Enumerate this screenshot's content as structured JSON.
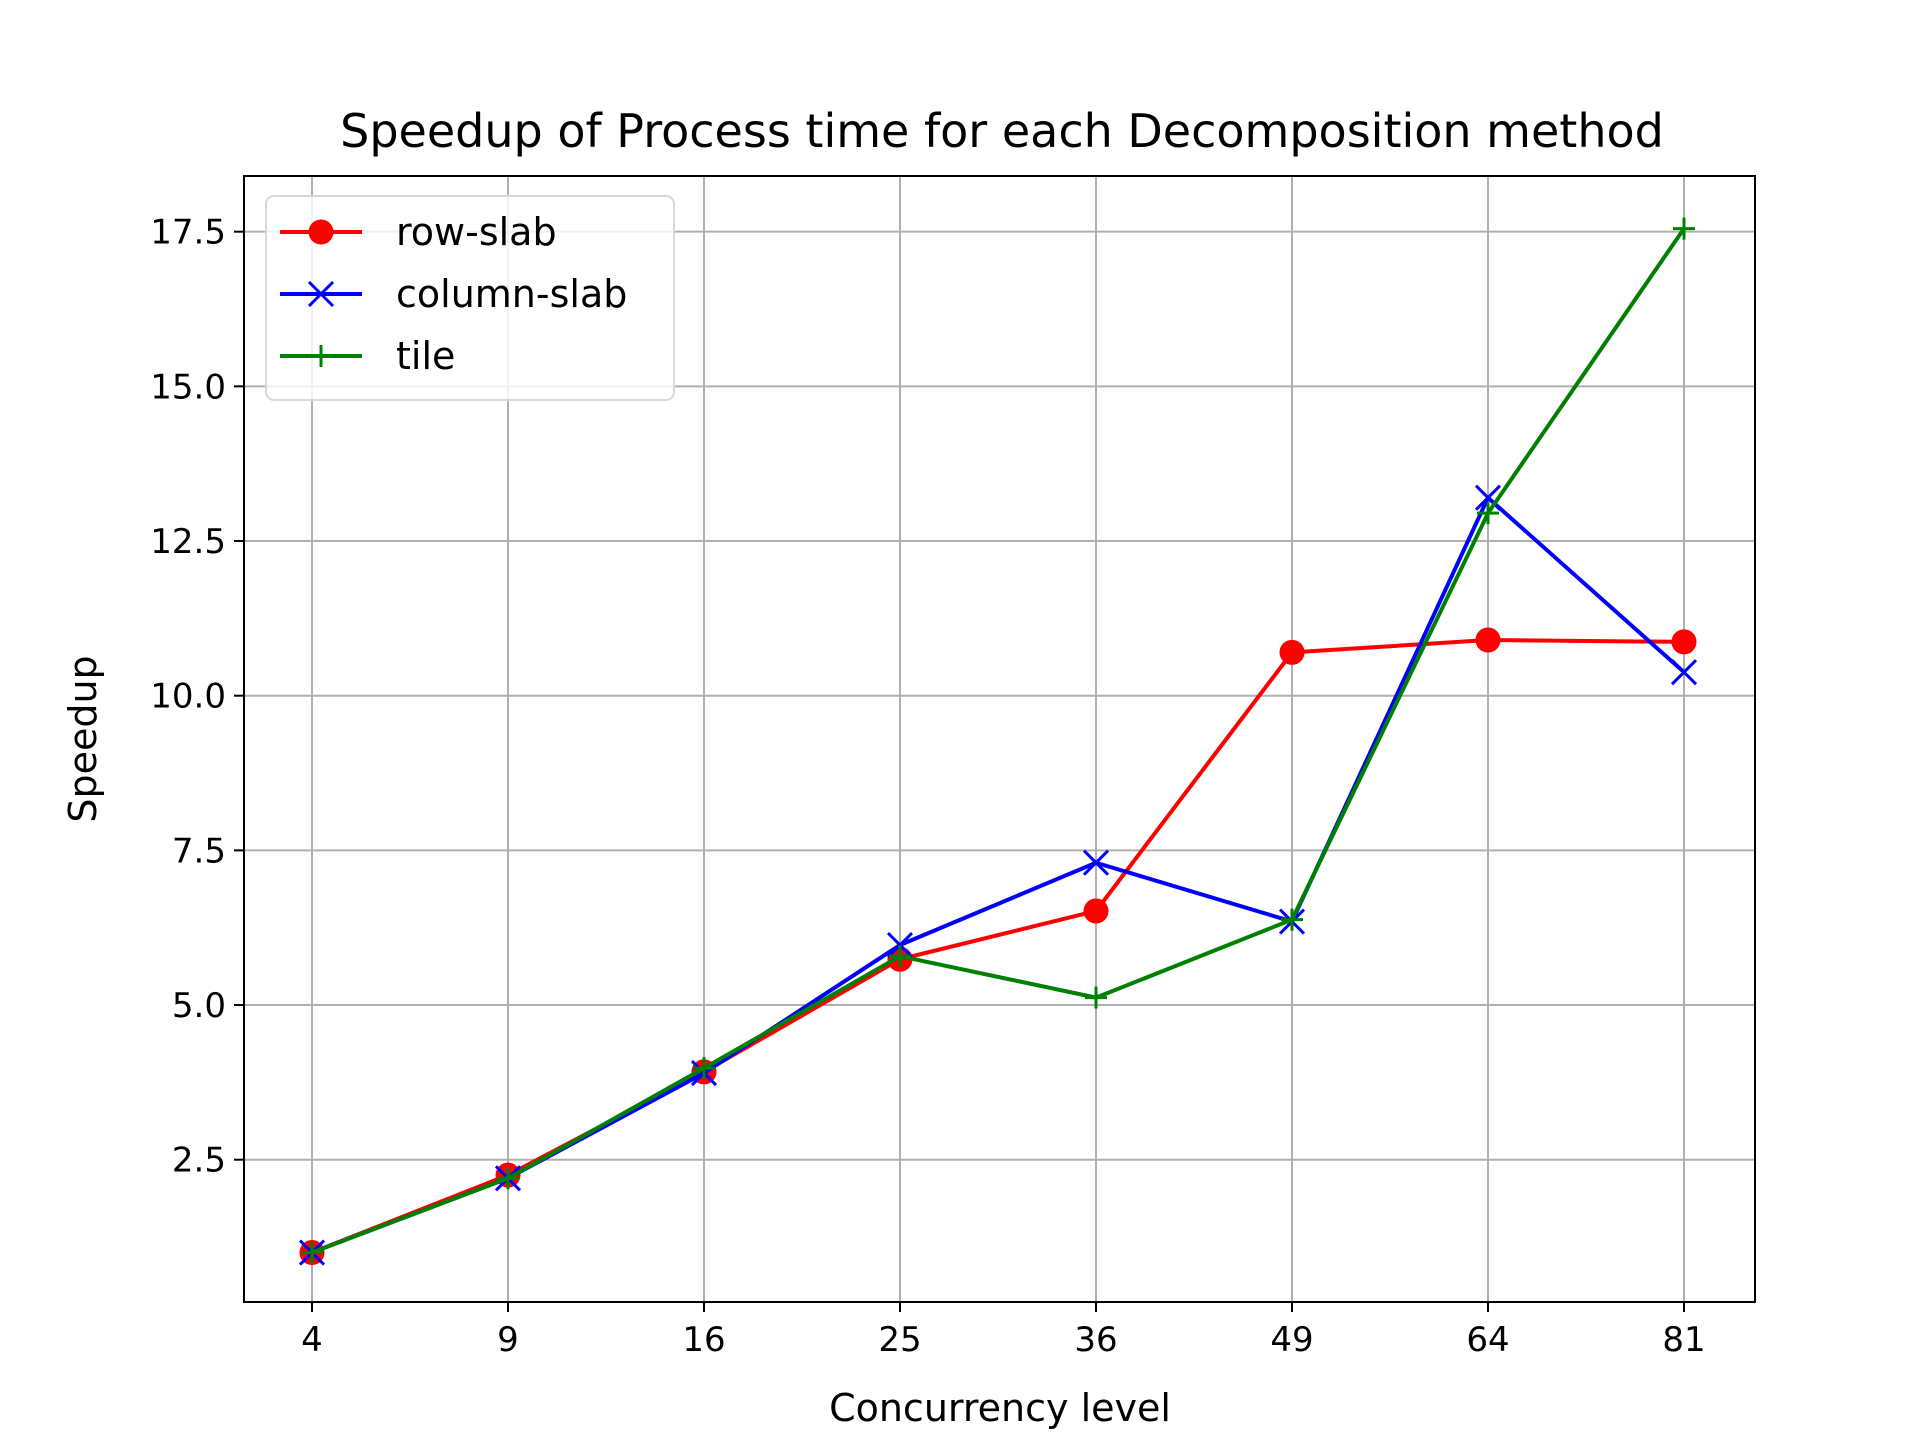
{
  "chart_data": {
    "type": "line",
    "title": "Speedup of Process time for each Decomposition method",
    "xlabel": "Concurrency level",
    "ylabel": "Speedup",
    "categories": [
      "4",
      "9",
      "16",
      "25",
      "36",
      "49",
      "64",
      "81"
    ],
    "ylim": [
      0.2,
      18.4
    ],
    "yticks": [
      2.5,
      5.0,
      7.5,
      10.0,
      12.5,
      15.0,
      17.5
    ],
    "ytick_labels": [
      "2.5",
      "5.0",
      "7.5",
      "10.0",
      "12.5",
      "15.0",
      "17.5"
    ],
    "grid": true,
    "legend_position": "upper-left",
    "series": [
      {
        "name": "row-slab",
        "color": "#ff0000",
        "marker": "circle",
        "values": [
          1.0,
          2.25,
          3.92,
          5.74,
          6.52,
          10.7,
          10.9,
          10.87
        ]
      },
      {
        "name": "column-slab",
        "color": "#0000ff",
        "marker": "x",
        "values": [
          1.0,
          2.2,
          3.9,
          5.97,
          7.3,
          6.35,
          13.2,
          10.38
        ]
      },
      {
        "name": "tile",
        "color": "#008000",
        "marker": "plus",
        "values": [
          1.0,
          2.2,
          3.98,
          5.79,
          5.12,
          6.38,
          12.95,
          17.55
        ]
      }
    ]
  }
}
